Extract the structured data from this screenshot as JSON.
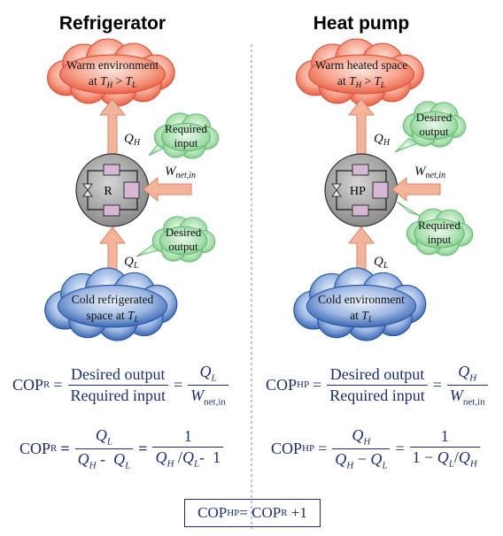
{
  "refrigerator": {
    "title": "Refrigerator",
    "warm_line1": "Warm environment",
    "warm_line2": "at T_H > T_L",
    "cold_line1": "Cold refrigerated",
    "cold_line2": "space at T_L",
    "device_label": "R",
    "top_bubble_line1": "Required",
    "top_bubble_line2": "input",
    "bottom_bubble_line1": "Desired",
    "bottom_bubble_line2": "output",
    "qh": "Q",
    "qh_sub": "H",
    "ql": "Q",
    "ql_sub": "L",
    "w": "W",
    "w_sub": "net,in"
  },
  "heat_pump": {
    "title": "Heat pump",
    "warm_line1": "Warm heated space",
    "warm_line2": "at T_H > T_L",
    "cold_line1": "Cold environment",
    "cold_line2": "at T_L",
    "device_label": "HP",
    "top_bubble_line1": "Desired",
    "top_bubble_line2": "output",
    "bottom_bubble_line1": "Required",
    "bottom_bubble_line2": "input",
    "qh": "Q",
    "qh_sub": "H",
    "ql": "Q",
    "ql_sub": "L",
    "w": "W",
    "w_sub": "net,in"
  },
  "equations": {
    "cop": "COP",
    "r_sub": "R",
    "hp_sub": "HP",
    "eq": "=",
    "desired_output": "Desired output",
    "required_input": "Required input",
    "q": "Q",
    "h": "H",
    "l": "L",
    "w": "W",
    "net_in": "net,in",
    "one": "1",
    "minus": "-",
    "one_minus": "1 −",
    "slash": "/",
    "relation_rhs": "+1"
  },
  "colors": {
    "warm_cloud": "#f2735a",
    "cold_cloud": "#2f63b8",
    "bubble": "#7fcf8a",
    "arrow": "#f4b49c",
    "device": "#9a9a9a",
    "text_blue": "#1f2f6e"
  }
}
